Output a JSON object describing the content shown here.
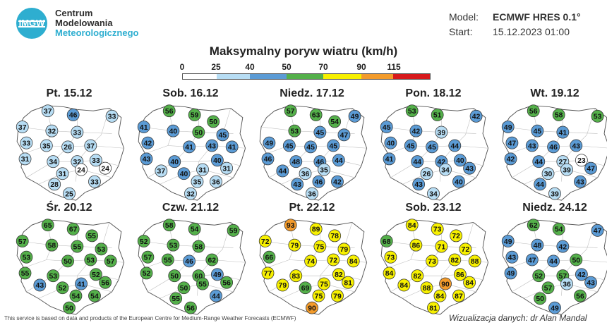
{
  "header": {
    "logo_lines": [
      "Centrum",
      "Modelowania",
      "Meteorologicznego"
    ],
    "logo_mark": "IMGW",
    "model_label": "Model:",
    "model_value": "ECMWF HRES 0.1°",
    "start_label": "Start:",
    "start_value": "15.12.2023 01:00"
  },
  "title": "Maksymalny poryw wiatru (km/h)",
  "legend": {
    "ticks": [
      "0",
      "25",
      "40",
      "50",
      "70",
      "90",
      "115"
    ],
    "colors": [
      "#ffffff",
      "#b7ddf4",
      "#5b9bd5",
      "#54b04a",
      "#f7f000",
      "#f39b2b",
      "#d7191c"
    ]
  },
  "days": [
    {
      "label": "Pt. 15.12",
      "values": [
        37,
        46,
        33,
        37,
        32,
        33,
        33,
        35,
        26,
        37,
        31,
        34,
        32,
        33,
        31,
        24,
        24,
        28,
        33,
        25
      ]
    },
    {
      "label": "Sob. 16.12",
      "values": [
        56,
        59,
        50,
        41,
        40,
        50,
        45,
        42,
        41,
        43,
        41,
        43,
        40,
        40,
        37,
        40,
        31,
        31,
        35,
        36,
        32
      ]
    },
    {
      "label": "Niedz. 17.12",
      "values": [
        57,
        63,
        54,
        49,
        53,
        45,
        47,
        49,
        45,
        45,
        45,
        46,
        48,
        46,
        44,
        44,
        36,
        35,
        43,
        46,
        42,
        36
      ]
    },
    {
      "label": "Pon. 18.12",
      "values": [
        53,
        51,
        42,
        45,
        42,
        39,
        40,
        45,
        45,
        44,
        41,
        44,
        42,
        40,
        26,
        34,
        43,
        43,
        40,
        34
      ]
    },
    {
      "label": "Wt. 19.12",
      "values": [
        56,
        58,
        53,
        49,
        45,
        41,
        47,
        43,
        46,
        43,
        42,
        44,
        27,
        23,
        30,
        39,
        47,
        44,
        43,
        39
      ]
    },
    {
      "label": "Śr. 20.12",
      "values": [
        65,
        67,
        55,
        57,
        58,
        55,
        53,
        53,
        50,
        53,
        57,
        55,
        53,
        52,
        43,
        52,
        41,
        56,
        54,
        54,
        50
      ]
    },
    {
      "label": "Czw. 21.12",
      "values": [
        58,
        54,
        59,
        52,
        53,
        58,
        57,
        55,
        46,
        62,
        52,
        50,
        60,
        49,
        50,
        55,
        56,
        55,
        44,
        56
      ]
    },
    {
      "label": "Pt. 22.12",
      "values": [
        93,
        89,
        78,
        72,
        79,
        75,
        79,
        66,
        74,
        72,
        84,
        77,
        83,
        82,
        79,
        69,
        75,
        81,
        75,
        79,
        90
      ]
    },
    {
      "label": "Sob. 23.12",
      "values": [
        84,
        73,
        72,
        68,
        86,
        71,
        72,
        73,
        73,
        82,
        88,
        84,
        82,
        86,
        84,
        88,
        90,
        84,
        84,
        87,
        81
      ]
    },
    {
      "label": "Niedz. 24.12",
      "values": [
        62,
        54,
        47,
        49,
        48,
        42,
        43,
        47,
        44,
        50,
        49,
        52,
        57,
        42,
        57,
        36,
        43,
        50,
        56,
        49
      ]
    }
  ],
  "footer": {
    "left": "This service is based on data and products of the European Centre for Medium-Range Weather Forecasts (ECMWF)",
    "right": "Wizualizacja danych: dr Alan Mandal"
  }
}
